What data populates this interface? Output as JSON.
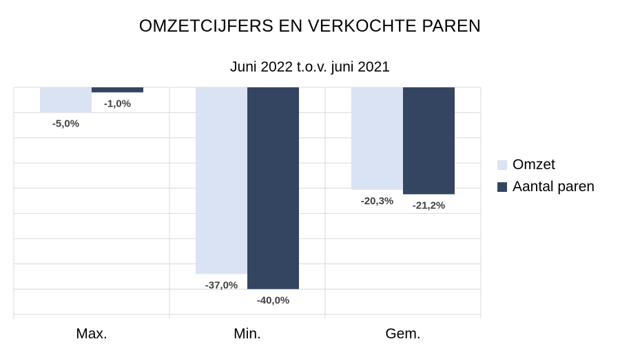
{
  "chart_data": {
    "type": "bar",
    "title": "OMZETCIJFERS EN VERKOCHTE PAREN",
    "subtitle": "Juni 2022 t.o.v. juni 2021",
    "categories": [
      "Max.",
      "Min.",
      "Gem."
    ],
    "series": [
      {
        "name": "Omzet",
        "color": "#dae3f3",
        "values": [
          -5.0,
          -37.0,
          -20.3
        ],
        "labels": [
          "-5,0%",
          "-37,0%",
          "-20,3%"
        ]
      },
      {
        "name": "Aantal paren",
        "color": "#344562",
        "values": [
          -1.0,
          -40.0,
          -21.2
        ],
        "labels": [
          "-1,0%",
          "-40,0%",
          "-21,2%"
        ]
      }
    ],
    "ylim": [
      -45,
      0
    ],
    "grid": true,
    "legend_position": "right"
  }
}
